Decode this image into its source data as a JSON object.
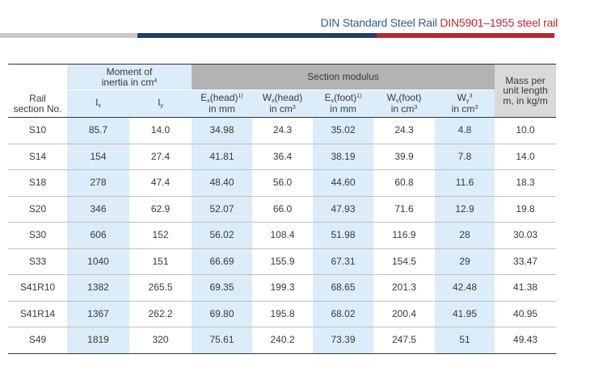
{
  "title": {
    "part1": "DIN Standard Steel Rail",
    "part2": "DIN5901–1955 steel rail"
  },
  "colors": {
    "navy": "#1f3f6b",
    "red": "#c0272d",
    "grey_bar": "#c9c9c9",
    "light_blue": "#dcecf8",
    "header_grey": "#b3b3b3"
  },
  "header": {
    "rail_section_line1": "Rail",
    "rail_section_line2": "section No.",
    "moment_line1": "Moment of",
    "moment_line2": "inertia in cm",
    "moment_sup": "4",
    "section_modulus": "Section modulus",
    "mass_line1": "Mass per",
    "mass_line2": "unit length",
    "mass_line3": "m, in kg/m",
    "ix": "I",
    "ix_sub": "x",
    "iy": "I",
    "iy_sub": "y",
    "e_head_pre": "E",
    "e_head_sub": "x",
    "e_head_post": "(head)",
    "e_head_sup": "1)",
    "e_head_line2": "in mm",
    "w_head_pre": "W",
    "w_head_sub": "x",
    "w_head_post": "(head)",
    "w_head_line2": "in cm",
    "w_head_sup": "3",
    "e_foot_pre": "E",
    "e_foot_sub": "x",
    "e_foot_post": "(foot)",
    "e_foot_sup": "1)",
    "e_foot_line2": "in mm",
    "w_foot_pre": "W",
    "w_foot_sub": "x",
    "w_foot_post": "(foot)",
    "w_foot_line2": "in cm",
    "w_foot_sup": "3",
    "wy_pre": "W",
    "wy_sub": "y",
    "wy_sup1": "3",
    "wy_line2": "in cm",
    "wy_sup2": "3"
  },
  "rows": [
    [
      "S10",
      "85.7",
      "14.0",
      "34.98",
      "24.3",
      "35.02",
      "24.3",
      "4.8",
      "10.0"
    ],
    [
      "S14",
      "154",
      "27.4",
      "41.81",
      "36.4",
      "38.19",
      "39.9",
      "7.8",
      "14.0"
    ],
    [
      "S18",
      "278",
      "47.4",
      "48.40",
      "56.0",
      "44.60",
      "60.8",
      "11.6",
      "18.3"
    ],
    [
      "S20",
      "346",
      "62.9",
      "52.07",
      "66.0",
      "47.93",
      "71.6",
      "12.9",
      "19.8"
    ],
    [
      "S30",
      "606",
      "152",
      "56.02",
      "108.4",
      "51.98",
      "116.9",
      "28",
      "30.03"
    ],
    [
      "S33",
      "1040",
      "151",
      "66.69",
      "155.9",
      "67.31",
      "154.5",
      "29",
      "33.47"
    ],
    [
      "S41R10",
      "1382",
      "265.5",
      "69.35",
      "199.3",
      "68.65",
      "201.3",
      "42.48",
      "41.38"
    ],
    [
      "S41R14",
      "1367",
      "262.2",
      "69.80",
      "195.8",
      "68.02",
      "200.4",
      "41.95",
      "40.95"
    ],
    [
      "S49",
      "1819",
      "320",
      "75.61",
      "240.2",
      "73.39",
      "247.5",
      "51",
      "49.43"
    ]
  ]
}
